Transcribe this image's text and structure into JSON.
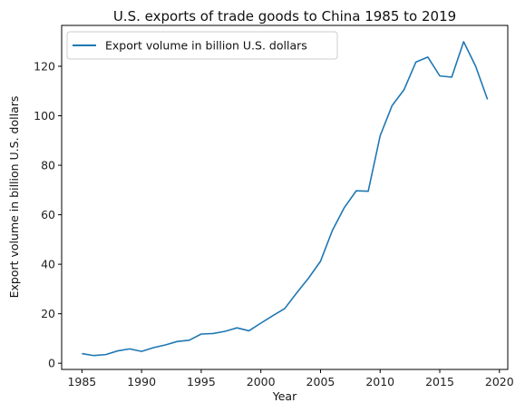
{
  "chart_data": {
    "type": "line",
    "title": "U.S. exports of trade goods to China 1985 to 2019",
    "xlabel": "Year",
    "ylabel": "Export volume in billion U.S. dollars",
    "xlim": [
      1983.3,
      2020.7
    ],
    "ylim": [
      -2.5,
      136.5
    ],
    "xticks": [
      1985,
      1990,
      1995,
      2000,
      2005,
      2010,
      2015,
      2020
    ],
    "yticks": [
      0,
      20,
      40,
      60,
      80,
      100,
      120
    ],
    "grid": false,
    "legend_position": "top-left",
    "line_color": "#1f77b4",
    "series": [
      {
        "name": "Export volume in billion U.S. dollars",
        "x": [
          1985,
          1986,
          1987,
          1988,
          1989,
          1990,
          1991,
          1992,
          1993,
          1994,
          1995,
          1996,
          1997,
          1998,
          1999,
          2000,
          2001,
          2002,
          2003,
          2004,
          2005,
          2006,
          2007,
          2008,
          2009,
          2010,
          2011,
          2012,
          2013,
          2014,
          2015,
          2016,
          2017,
          2018,
          2019
        ],
        "y": [
          3.9,
          3.1,
          3.5,
          5.0,
          5.8,
          4.8,
          6.3,
          7.4,
          8.8,
          9.3,
          11.8,
          12.0,
          12.9,
          14.3,
          13.1,
          16.2,
          19.2,
          22.1,
          28.4,
          34.4,
          41.2,
          53.7,
          62.9,
          69.7,
          69.5,
          91.9,
          104.1,
          110.5,
          121.7,
          123.7,
          116.1,
          115.6,
          129.9,
          120.1,
          106.6
        ]
      }
    ]
  }
}
